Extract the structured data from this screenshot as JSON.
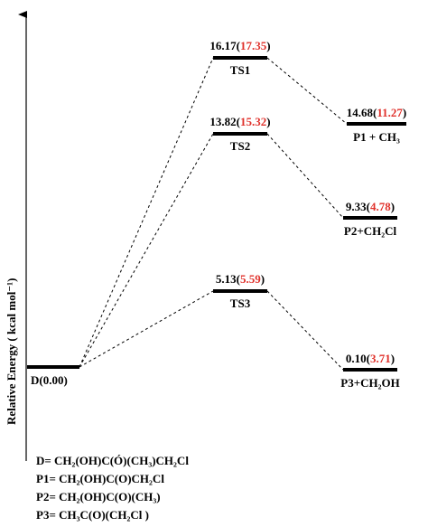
{
  "figure": {
    "y_axis_label": "Relative Energy ( kcal mol⁻¹)"
  },
  "levels": [
    {
      "id": "D",
      "name": "D",
      "value": "0.00",
      "label": "D(0.00)"
    },
    {
      "id": "TS1",
      "name": "TS1",
      "value": "16.17",
      "value_alt": "17.35"
    },
    {
      "id": "TS2",
      "name": "TS2",
      "value": "13.82",
      "value_alt": "15.32"
    },
    {
      "id": "TS3",
      "name": "TS3",
      "value": "5.13",
      "value_alt": "5.59"
    },
    {
      "id": "P1",
      "name": "P1 + CH₃",
      "value": "14.68",
      "value_alt": "11.27"
    },
    {
      "id": "P2",
      "name": "P2+CH₂Cl",
      "value": "9.33",
      "value_alt": "4.78"
    },
    {
      "id": "P3",
      "name": "P3+CH₂OH",
      "value": "0.10",
      "value_alt": "3.71"
    }
  ],
  "legend": [
    "D= CH₂(OH)C(Ó)(CH₃)CH₂Cl",
    "P1= CH₂(OH)C(O)CH₂Cl",
    "P2= CH₂(OH)C(O)(CH₃)",
    "P3= CH₃C(O)(CH₂Cl )"
  ],
  "colors": {
    "alt_value": "#e0312b",
    "line": "#000000"
  }
}
